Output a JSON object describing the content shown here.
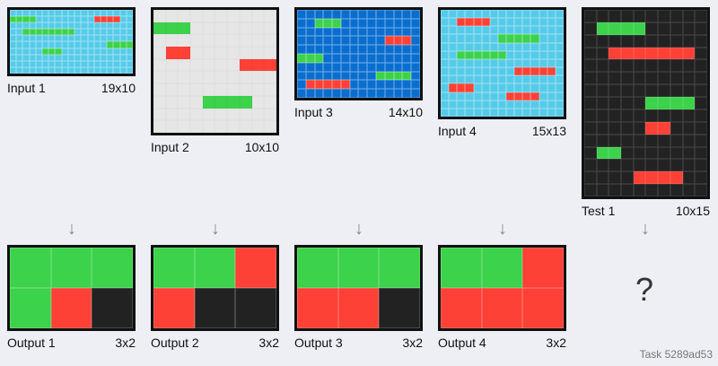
{
  "colors": {
    "black": "#222222",
    "red": "#fd4136",
    "green": "#3cd24b",
    "light_blue": "#56cbe9",
    "gray": "#e6e6e6",
    "blue": "#0a6ecf"
  },
  "inputs": [
    {
      "label": "Input 1",
      "size": "19x10",
      "width": 19,
      "height": 10,
      "background": "light_blue",
      "segments": [
        {
          "row": 1,
          "col": 0,
          "len": 4,
          "color": "green"
        },
        {
          "row": 1,
          "col": 13,
          "len": 4,
          "color": "red"
        },
        {
          "row": 3,
          "col": 2,
          "len": 8,
          "color": "green"
        },
        {
          "row": 5,
          "col": 15,
          "len": 4,
          "color": "green"
        },
        {
          "row": 6,
          "col": 5,
          "len": 3,
          "color": "green"
        }
      ]
    },
    {
      "label": "Input 2",
      "size": "10x10",
      "width": 10,
      "height": 10,
      "background": "gray",
      "segments": [
        {
          "row": 1,
          "col": 0,
          "len": 3,
          "color": "green"
        },
        {
          "row": 3,
          "col": 1,
          "len": 2,
          "color": "red"
        },
        {
          "row": 4,
          "col": 7,
          "len": 3,
          "color": "red"
        },
        {
          "row": 7,
          "col": 4,
          "len": 4,
          "color": "green"
        }
      ]
    },
    {
      "label": "Input 3",
      "size": "14x10",
      "width": 14,
      "height": 10,
      "background": "blue",
      "segments": [
        {
          "row": 1,
          "col": 2,
          "len": 3,
          "color": "green"
        },
        {
          "row": 3,
          "col": 10,
          "len": 3,
          "color": "red"
        },
        {
          "row": 5,
          "col": 0,
          "len": 3,
          "color": "green"
        },
        {
          "row": 7,
          "col": 9,
          "len": 4,
          "color": "green"
        },
        {
          "row": 8,
          "col": 1,
          "len": 5,
          "color": "red"
        }
      ]
    },
    {
      "label": "Input 4",
      "size": "15x13",
      "width": 15,
      "height": 13,
      "background": "light_blue",
      "segments": [
        {
          "row": 1,
          "col": 2,
          "len": 4,
          "color": "red"
        },
        {
          "row": 3,
          "col": 7,
          "len": 5,
          "color": "green"
        },
        {
          "row": 5,
          "col": 2,
          "len": 6,
          "color": "green"
        },
        {
          "row": 7,
          "col": 9,
          "len": 5,
          "color": "red"
        },
        {
          "row": 9,
          "col": 1,
          "len": 3,
          "color": "red"
        },
        {
          "row": 10,
          "col": 8,
          "len": 4,
          "color": "red"
        }
      ]
    }
  ],
  "test": {
    "label": "Test 1",
    "size": "10x15",
    "width": 10,
    "height": 15,
    "background": "black",
    "segments": [
      {
        "row": 1,
        "col": 1,
        "len": 4,
        "color": "green"
      },
      {
        "row": 3,
        "col": 2,
        "len": 7,
        "color": "red"
      },
      {
        "row": 7,
        "col": 5,
        "len": 4,
        "color": "green"
      },
      {
        "row": 9,
        "col": 5,
        "len": 2,
        "color": "red"
      },
      {
        "row": 11,
        "col": 1,
        "len": 2,
        "color": "green"
      },
      {
        "row": 13,
        "col": 4,
        "len": 4,
        "color": "red"
      }
    ]
  },
  "outputs": [
    {
      "label": "Output 1",
      "size": "3x2",
      "cells": [
        [
          "green",
          "green",
          "green"
        ],
        [
          "green",
          "red",
          "black"
        ]
      ]
    },
    {
      "label": "Output 2",
      "size": "3x2",
      "cells": [
        [
          "green",
          "green",
          "red"
        ],
        [
          "red",
          "black",
          "black"
        ]
      ]
    },
    {
      "label": "Output 3",
      "size": "3x2",
      "cells": [
        [
          "green",
          "green",
          "green"
        ],
        [
          "red",
          "red",
          "black"
        ]
      ]
    },
    {
      "label": "Output 4",
      "size": "3x2",
      "cells": [
        [
          "green",
          "green",
          "red"
        ],
        [
          "red",
          "red",
          "red"
        ]
      ]
    }
  ],
  "arrow_glyph": "↓",
  "question_mark": "?",
  "task_label": "Task 5289ad53"
}
